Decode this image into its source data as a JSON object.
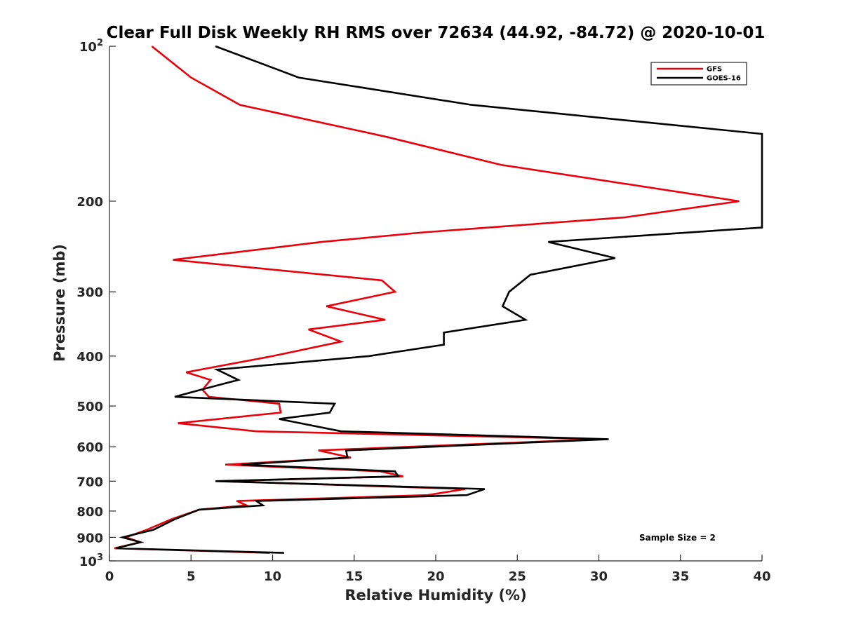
{
  "chart_data": {
    "type": "line",
    "title": "Clear Full Disk Weekly RH RMS over 72634 (44.92, -84.72) @ 2020-10-01",
    "xlabel": "Relative Humidity (%)",
    "ylabel": "Pressure (mb)",
    "xlim": [
      0,
      40
    ],
    "ylim": [
      100,
      1000
    ],
    "yscale": "log",
    "yreversed": true,
    "xticks": [
      0,
      5,
      10,
      15,
      20,
      25,
      30,
      35,
      40
    ],
    "xtick_labels": [
      "0",
      "5",
      "10",
      "15",
      "20",
      "25",
      "30",
      "35",
      "40"
    ],
    "yticks": [
      100,
      200,
      300,
      400,
      500,
      600,
      700,
      800,
      900,
      1000
    ],
    "ytick_labels": [
      {
        "base": "10",
        "exp": "2"
      },
      {
        "text": "200"
      },
      {
        "text": "300"
      },
      {
        "text": "400"
      },
      {
        "text": "500"
      },
      {
        "text": "600"
      },
      {
        "text": "700"
      },
      {
        "text": "800"
      },
      {
        "text": "900"
      },
      {
        "base": "10",
        "exp": "3"
      }
    ],
    "legend_position": "top-right",
    "annotation": "Sample Size = 2",
    "series": [
      {
        "name": "GFS",
        "color": "#e8000b",
        "points": [
          [
            2.6,
            100
          ],
          [
            5.0,
            115
          ],
          [
            8.0,
            130
          ],
          [
            17.0,
            150
          ],
          [
            24.0,
            170
          ],
          [
            38.6,
            200
          ],
          [
            31.6,
            215
          ],
          [
            19.2,
            230
          ],
          [
            13.0,
            240
          ],
          [
            3.9,
            260
          ],
          [
            16.7,
            285
          ],
          [
            17.5,
            300
          ],
          [
            13.3,
            320
          ],
          [
            16.9,
            340
          ],
          [
            12.2,
            355
          ],
          [
            14.2,
            375
          ],
          [
            10.0,
            400
          ],
          [
            4.7,
            430
          ],
          [
            6.2,
            445
          ],
          [
            5.7,
            465
          ],
          [
            6.1,
            480
          ],
          [
            10.4,
            495
          ],
          [
            10.5,
            515
          ],
          [
            4.2,
            540
          ],
          [
            9.0,
            560
          ],
          [
            30.2,
            580
          ],
          [
            12.8,
            610
          ],
          [
            14.8,
            630
          ],
          [
            7.1,
            650
          ],
          [
            16.6,
            670
          ],
          [
            18.0,
            685
          ],
          [
            6.8,
            700
          ],
          [
            21.8,
            725
          ],
          [
            19.5,
            745
          ],
          [
            7.8,
            765
          ],
          [
            8.4,
            780
          ],
          [
            5.5,
            795
          ],
          [
            3.8,
            830
          ],
          [
            2.3,
            870
          ],
          [
            1.0,
            900
          ],
          [
            1.9,
            920
          ],
          [
            0.3,
            945
          ],
          [
            9.8,
            965
          ]
        ]
      },
      {
        "name": "GOES-16",
        "color": "#000000",
        "points": [
          [
            6.5,
            100
          ],
          [
            11.6,
            115
          ],
          [
            22.2,
            130
          ],
          [
            40.0,
            148
          ],
          [
            40.0,
            225
          ],
          [
            26.9,
            240
          ],
          [
            31.0,
            258
          ],
          [
            25.8,
            278
          ],
          [
            24.5,
            300
          ],
          [
            24.1,
            320
          ],
          [
            25.5,
            340
          ],
          [
            20.5,
            360
          ],
          [
            20.5,
            380
          ],
          [
            15.9,
            400
          ],
          [
            6.6,
            425
          ],
          [
            7.9,
            445
          ],
          [
            5.6,
            465
          ],
          [
            4.0,
            480
          ],
          [
            13.8,
            495
          ],
          [
            13.5,
            515
          ],
          [
            10.4,
            530
          ],
          [
            14.2,
            560
          ],
          [
            30.6,
            580
          ],
          [
            14.5,
            610
          ],
          [
            14.6,
            630
          ],
          [
            8.1,
            650
          ],
          [
            17.5,
            670
          ],
          [
            17.7,
            685
          ],
          [
            6.5,
            700
          ],
          [
            23.0,
            725
          ],
          [
            21.9,
            745
          ],
          [
            9.0,
            765
          ],
          [
            9.4,
            780
          ],
          [
            5.5,
            795
          ],
          [
            4.0,
            830
          ],
          [
            2.7,
            870
          ],
          [
            0.8,
            900
          ],
          [
            1.9,
            920
          ],
          [
            0.4,
            945
          ],
          [
            10.7,
            965
          ]
        ]
      }
    ]
  }
}
